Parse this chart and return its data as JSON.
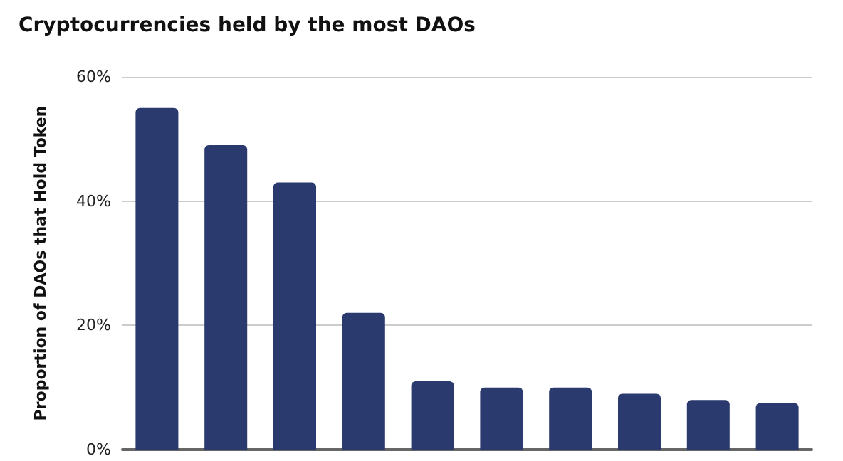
{
  "chart_data": {
    "type": "bar",
    "title": "Cryptocurrencies held by the most DAOs",
    "ylabel": "Proportion of DAOs that Hold Token",
    "categories": [
      null,
      null,
      null,
      null,
      null,
      null,
      null,
      null,
      null,
      null
    ],
    "values": [
      55,
      49,
      43,
      22,
      11,
      10,
      10,
      9,
      8,
      7.5
    ],
    "color": "#2b3a6e",
    "ylim": [
      0,
      60
    ],
    "yticks": [
      {
        "value": 0,
        "label": "0%"
      },
      {
        "value": 20,
        "label": "20%"
      },
      {
        "value": 40,
        "label": "40%"
      },
      {
        "value": 60,
        "label": "60%"
      }
    ],
    "grid": "y"
  }
}
